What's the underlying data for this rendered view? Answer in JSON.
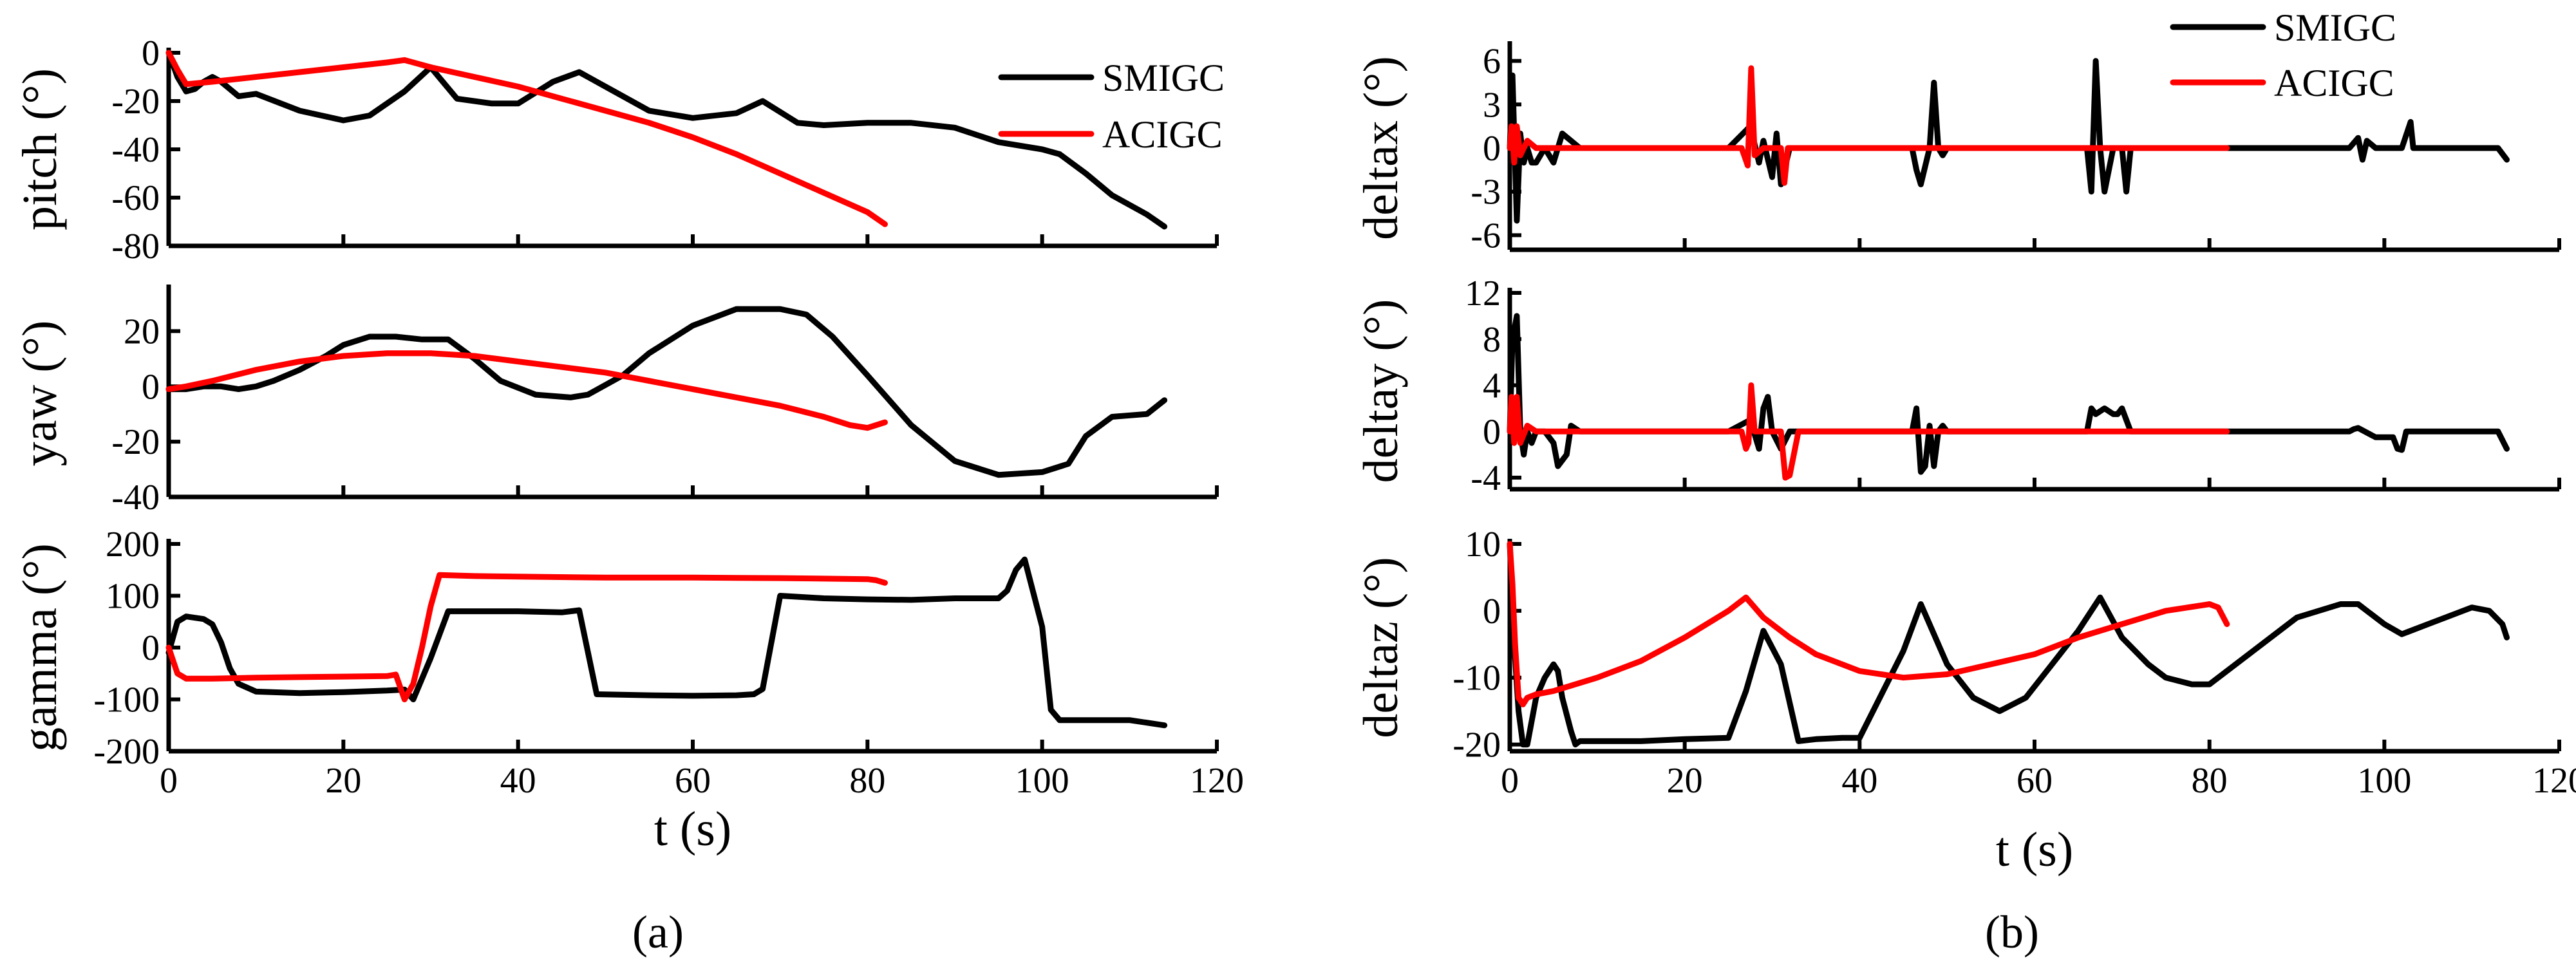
{
  "colors": {
    "SMIGC": "#000000",
    "ACIGC": "#ff0000"
  },
  "legend": {
    "a": [
      "SMIGC",
      "ACIGC"
    ],
    "b": [
      "SMIGC",
      "ACIGC"
    ]
  },
  "captions": {
    "a": "(a)",
    "b": "(b)"
  },
  "chart_data": [
    {
      "id": "pitch",
      "type": "line",
      "group": "a",
      "ylabel": "pitch (°)",
      "xlabel": "",
      "xlim": [
        0,
        120
      ],
      "ylim": [
        -80,
        0
      ],
      "xticks": [],
      "yticks": [
        0,
        -20,
        -40,
        -60,
        -80
      ],
      "series": [
        {
          "name": "SMIGC",
          "x": [
            0,
            1,
            2,
            3,
            4,
            5,
            6,
            8,
            10,
            15,
            20,
            23,
            27,
            30,
            33,
            37,
            40,
            44,
            47,
            50,
            55,
            60,
            65,
            68,
            72,
            75,
            80,
            85,
            90,
            95,
            100,
            102,
            105,
            108,
            112,
            114
          ],
          "y": [
            0,
            -10,
            -16,
            -15,
            -12,
            -10,
            -12,
            -18,
            -17,
            -24,
            -28,
            -26,
            -16,
            -6,
            -19,
            -21,
            -21,
            -12,
            -8,
            -14,
            -24,
            -27,
            -25,
            -20,
            -29,
            -30,
            -29,
            -29,
            -31,
            -37,
            -40,
            -42,
            -50,
            -59,
            -67,
            -72
          ]
        },
        {
          "name": "ACIGC",
          "x": [
            0,
            1,
            2,
            5,
            10,
            15,
            20,
            25,
            27,
            30,
            35,
            40,
            45,
            50,
            55,
            60,
            65,
            70,
            75,
            80,
            82
          ],
          "y": [
            0,
            -7,
            -13,
            -12,
            -10,
            -8,
            -6,
            -4,
            -3,
            -6,
            -10,
            -14,
            -19,
            -24,
            -29,
            -35,
            -42,
            -50,
            -58,
            -66,
            -71
          ]
        }
      ]
    },
    {
      "id": "yaw",
      "type": "line",
      "group": "a",
      "ylabel": "yaw (°)",
      "xlabel": "",
      "xlim": [
        0,
        120
      ],
      "ylim": [
        -40,
        35
      ],
      "xticks": [],
      "yticks": [
        20,
        0,
        -20,
        -40
      ],
      "series": [
        {
          "name": "SMIGC",
          "x": [
            0,
            2,
            4,
            6,
            8,
            10,
            12,
            15,
            18,
            20,
            23,
            26,
            29,
            32,
            35,
            38,
            42,
            46,
            48,
            52,
            55,
            60,
            65,
            70,
            73,
            76,
            80,
            85,
            90,
            95,
            100,
            103,
            105,
            108,
            112,
            114
          ],
          "y": [
            -1,
            -1,
            0,
            0,
            -1,
            0,
            2,
            6,
            11,
            15,
            18,
            18,
            17,
            17,
            10,
            2,
            -3,
            -4,
            -3,
            4,
            12,
            22,
            28,
            28,
            26,
            18,
            4,
            -14,
            -27,
            -32,
            -31,
            -28,
            -18,
            -11,
            -10,
            -5
          ]
        },
        {
          "name": "ACIGC",
          "x": [
            0,
            2,
            5,
            10,
            15,
            20,
            25,
            30,
            35,
            40,
            45,
            50,
            55,
            60,
            65,
            70,
            75,
            78,
            80,
            82
          ],
          "y": [
            -1,
            0,
            2,
            6,
            9,
            11,
            12,
            12,
            11,
            9,
            7,
            5,
            2,
            -1,
            -4,
            -7,
            -11,
            -14,
            -15,
            -13
          ]
        }
      ]
    },
    {
      "id": "gamma",
      "type": "line",
      "group": "a",
      "ylabel": "gamma (°)",
      "xlabel": "t (s)",
      "xlim": [
        0,
        120
      ],
      "ylim": [
        -200,
        200
      ],
      "xticks": [
        0,
        20,
        40,
        60,
        80,
        100,
        120
      ],
      "yticks": [
        200,
        100,
        0,
        -100,
        -200
      ],
      "series": [
        {
          "name": "SMIGC",
          "x": [
            0,
            1,
            2,
            4,
            5,
            6,
            7,
            8,
            10,
            15,
            20,
            25,
            27,
            28,
            30,
            32,
            40,
            45,
            47,
            49,
            55,
            60,
            65,
            67,
            68,
            70,
            75,
            80,
            85,
            90,
            95,
            96,
            97,
            98,
            100,
            101,
            102,
            110,
            114
          ],
          "y": [
            -10,
            50,
            60,
            55,
            45,
            10,
            -40,
            -70,
            -85,
            -88,
            -86,
            -83,
            -81,
            -100,
            -20,
            70,
            70,
            68,
            72,
            -90,
            -92,
            -93,
            -92,
            -90,
            -80,
            100,
            95,
            93,
            92,
            95,
            95,
            110,
            150,
            170,
            40,
            -120,
            -140,
            -140,
            -150
          ]
        },
        {
          "name": "ACIGC",
          "x": [
            0,
            1,
            2,
            5,
            10,
            15,
            20,
            25,
            26,
            27,
            28,
            29,
            30,
            31,
            35,
            40,
            50,
            60,
            70,
            80,
            81,
            82
          ],
          "y": [
            0,
            -50,
            -60,
            -60,
            -58,
            -57,
            -56,
            -55,
            -52,
            -100,
            -70,
            0,
            80,
            140,
            138,
            137,
            135,
            135,
            134,
            132,
            130,
            125
          ]
        }
      ]
    },
    {
      "id": "deltax",
      "type": "line",
      "group": "b",
      "ylabel": "deltax (°)",
      "xlabel": "",
      "xlim": [
        0,
        120
      ],
      "ylim": [
        -7,
        7
      ],
      "xticks": [],
      "yticks": [
        6,
        3,
        0,
        -3,
        -6
      ],
      "series": [
        {
          "name": "SMIGC",
          "x": [
            0,
            0.3,
            0.8,
            1.2,
            1.6,
            2.0,
            2.5,
            3,
            4,
            5,
            6,
            7,
            8,
            10,
            25,
            27.5,
            28.5,
            29,
            30,
            30.5,
            31,
            32,
            46,
            46.5,
            47,
            48,
            48.5,
            49,
            49.5,
            50,
            66,
            66.5,
            67,
            67.5,
            68,
            69,
            70,
            70.5,
            71,
            96,
            97,
            97.5,
            98,
            99,
            102,
            103,
            103.3,
            104,
            113,
            114
          ],
          "y": [
            0,
            5,
            -5,
            1,
            -1,
            0,
            -1,
            -1,
            0,
            -1,
            1,
            0.5,
            0,
            0,
            0,
            1.5,
            -1,
            0.5,
            -2,
            1,
            -2.5,
            0,
            0,
            -1.5,
            -2.5,
            0,
            4.5,
            0,
            -0.5,
            0,
            0,
            -3,
            6,
            0,
            -3,
            0,
            0,
            -3,
            0,
            0,
            0.7,
            -0.8,
            0.5,
            0,
            0,
            1.8,
            0,
            0,
            0,
            -0.8
          ]
        },
        {
          "name": "ACIGC",
          "x": [
            0,
            0.2,
            0.5,
            0.8,
            1.2,
            2,
            3,
            5,
            10,
            26.5,
            27.2,
            27.6,
            28,
            29,
            31,
            31.4,
            31.8,
            33,
            40,
            60,
            82
          ],
          "y": [
            0,
            1.5,
            -1,
            1.5,
            -0.5,
            0.5,
            0,
            0,
            0,
            0,
            -1.2,
            5.5,
            -0.5,
            0,
            0,
            -2.4,
            0,
            0,
            0,
            0,
            0
          ]
        }
      ]
    },
    {
      "id": "deltay",
      "type": "line",
      "group": "b",
      "ylabel": "deltay (°)",
      "xlabel": "",
      "xlim": [
        0,
        120
      ],
      "ylim": [
        -5,
        12
      ],
      "xticks": [],
      "yticks": [
        12,
        8,
        4,
        0,
        -4
      ],
      "series": [
        {
          "name": "SMIGC",
          "x": [
            0,
            0.3,
            0.8,
            1.2,
            1.6,
            2,
            2.5,
            3,
            4,
            5,
            5.5,
            6,
            6.5,
            7,
            8,
            10,
            25,
            27.5,
            28.5,
            29,
            29.5,
            30,
            31,
            32,
            46,
            46.5,
            47,
            47.5,
            48,
            48.5,
            49,
            49.5,
            50,
            66,
            66.5,
            67,
            68,
            69,
            69.5,
            70,
            70.5,
            71,
            90,
            95,
            96,
            96.5,
            97,
            99,
            101,
            101.5,
            102,
            102.5,
            113,
            114
          ],
          "y": [
            0,
            8,
            10,
            0,
            -2,
            0,
            -1,
            0,
            0,
            -1,
            -3,
            -2.5,
            -2,
            0.5,
            0,
            0,
            0,
            1,
            -1.5,
            2,
            3,
            0,
            -1.5,
            0,
            0,
            2,
            -3.5,
            -3,
            0.5,
            -3,
            0,
            0.5,
            0,
            0,
            2,
            1.5,
            2,
            1.5,
            1.5,
            2,
            1,
            0,
            0,
            0,
            0,
            0.2,
            0.3,
            -0.5,
            -0.5,
            -1.5,
            -1.6,
            0,
            0,
            -1.5
          ]
        },
        {
          "name": "ACIGC",
          "x": [
            0,
            0.2,
            0.5,
            0.8,
            1.2,
            2,
            3,
            5,
            10,
            26.5,
            27,
            27.3,
            27.6,
            28,
            29,
            31,
            31.5,
            32,
            33,
            40,
            60,
            82
          ],
          "y": [
            0,
            3,
            -1,
            3,
            -1,
            0.5,
            0,
            0,
            0,
            0,
            -1.5,
            -1,
            4,
            0,
            0,
            0,
            -4,
            -3.8,
            0,
            0,
            0,
            0
          ]
        }
      ]
    },
    {
      "id": "deltaz",
      "type": "line",
      "group": "b",
      "ylabel": "deltaz (°)",
      "xlabel": "t (s)",
      "xlim": [
        0,
        120
      ],
      "ylim": [
        -21,
        10
      ],
      "xticks": [
        0,
        20,
        40,
        60,
        80,
        100,
        120
      ],
      "yticks": [
        10,
        0,
        -10,
        -20
      ],
      "series": [
        {
          "name": "SMIGC",
          "x": [
            0,
            0.5,
            1,
            1.5,
            2,
            3,
            4,
            5,
            5.5,
            6,
            7,
            7.5,
            8,
            10,
            15,
            20,
            25,
            27,
            29,
            31,
            33,
            35,
            38,
            40,
            45,
            47,
            50,
            53,
            56,
            59,
            62,
            65,
            67.5,
            70,
            73,
            75,
            78,
            80,
            85,
            90,
            95,
            97,
            100,
            102,
            103,
            105,
            108,
            110,
            112,
            113.5,
            114
          ],
          "y": [
            10,
            -5,
            -15,
            -20,
            -20,
            -13,
            -10,
            -8,
            -9,
            -13,
            -18,
            -20,
            -19.5,
            -19.5,
            -19.5,
            -19.2,
            -19,
            -12,
            -3,
            -8,
            -19.5,
            -19.2,
            -19,
            -19,
            -6,
            1,
            -8,
            -13,
            -15,
            -13,
            -8,
            -3,
            2,
            -4,
            -8,
            -10,
            -11,
            -11,
            -6,
            -1,
            1,
            1,
            -2,
            -3.5,
            -3,
            -2,
            -0.5,
            0.5,
            0,
            -2,
            -4
          ]
        },
        {
          "name": "ACIGC",
          "x": [
            0,
            0.3,
            0.6,
            1,
            1.5,
            2,
            3,
            5,
            10,
            15,
            20,
            25,
            27,
            29,
            32,
            35,
            40,
            45,
            50,
            55,
            60,
            65,
            70,
            75,
            80,
            81,
            82
          ],
          "y": [
            10,
            4,
            -5,
            -13,
            -14,
            -13,
            -12.5,
            -12,
            -10,
            -7.5,
            -4,
            0,
            2,
            -1,
            -4,
            -6.5,
            -9,
            -10,
            -9.5,
            -8,
            -6.5,
            -4,
            -2,
            0,
            1,
            0.5,
            -2
          ]
        }
      ]
    }
  ]
}
